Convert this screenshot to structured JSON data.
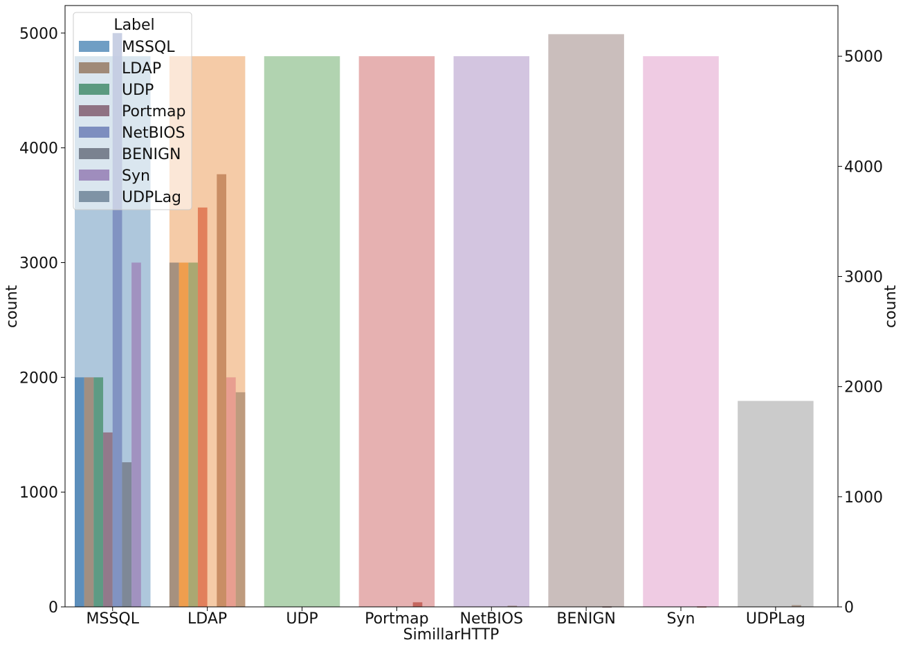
{
  "chart_data": {
    "type": "bar",
    "xlabel": "SimillarHTTP",
    "ylabel_left": "count",
    "ylabel_right": "count",
    "categories": [
      "MSSQL",
      "LDAP",
      "UDP",
      "Portmap",
      "NetBIOS",
      "BENIGN",
      "Syn",
      "UDPLag"
    ],
    "ylim_left": [
      0,
      5240
    ],
    "ylim_right": [
      0,
      5460
    ],
    "yticks_left": [
      0,
      1000,
      2000,
      3000,
      4000,
      5000
    ],
    "yticks_right": [
      0,
      1000,
      2000,
      3000,
      4000,
      5000
    ],
    "background_bars": {
      "axis": "right",
      "values": [
        5000,
        5000,
        5000,
        5000,
        5000,
        5200,
        5000,
        1870
      ],
      "colors": [
        "#aec7dc",
        "#f5cba7",
        "#b1d3b0",
        "#e6b1b1",
        "#d3c5e0",
        "#cabebc",
        "#efcbe3",
        "#cbcbcb"
      ]
    },
    "legend": {
      "title": "Label",
      "placement": "upper left",
      "entries": [
        "MSSQL",
        "LDAP",
        "UDP",
        "Portmap",
        "NetBIOS",
        "BENIGN",
        "Syn",
        "UDPLag"
      ],
      "colors": [
        "#6f9ec4",
        "#a08a78",
        "#5b9a80",
        "#8f7283",
        "#7d8ebf",
        "#7a8290",
        "#9f8dbd",
        "#7f93a5"
      ]
    },
    "hue_bars": {
      "axis": "left",
      "series": [
        {
          "values": [
            2000,
            3000,
            0,
            0,
            0,
            0,
            0,
            0
          ],
          "colors": [
            "#5589b7",
            "#9e8c7c",
            "#5b9a80",
            "#8f7283",
            "#7d8ebf",
            "#7a8290",
            "#9f8dbd",
            "#7f93a5"
          ]
        },
        {
          "values": [
            2000,
            3000,
            0,
            0,
            0,
            0,
            0,
            0
          ],
          "colors": [
            "#a08a78",
            "#ee9a47",
            "#5b9a80",
            "#8f7283",
            "#7d8ebf",
            "#7a8290",
            "#9f8dbd",
            "#7f93a5"
          ]
        },
        {
          "values": [
            2000,
            3000,
            0,
            0,
            0,
            0,
            0,
            0
          ],
          "colors": [
            "#56977c",
            "#a3a56e",
            "#5b9a80",
            "#8f7283",
            "#7d8ebf",
            "#7a8290",
            "#9f8dbd",
            "#7f93a5"
          ]
        },
        {
          "values": [
            1520,
            3480,
            0,
            0,
            0,
            0,
            0,
            0
          ],
          "colors": [
            "#8f7283",
            "#e07a55",
            "#5b9a80",
            "#8f7283",
            "#7d8ebf",
            "#7a8290",
            "#9f8dbd",
            "#7f93a5"
          ]
        },
        {
          "values": [
            5000,
            0,
            0,
            0,
            0,
            0,
            0,
            0
          ],
          "colors": [
            "#7d8ebf",
            "#e07a55",
            "#5b9a80",
            "#8f7283",
            "#7d8ebf",
            "#7a8290",
            "#9f8dbd",
            "#7f93a5"
          ]
        },
        {
          "values": [
            1260,
            3770,
            0,
            0,
            0,
            0,
            0,
            0
          ],
          "colors": [
            "#7a8290",
            "#c4895f",
            "#5b9a80",
            "#8f7283",
            "#7d8ebf",
            "#7a8290",
            "#9f8dbd",
            "#7f93a5"
          ]
        },
        {
          "values": [
            3000,
            2000,
            0,
            0,
            0,
            0,
            0,
            0
          ],
          "colors": [
            "#9f8dbd",
            "#e69a8e",
            "#5b9a80",
            "#8f7283",
            "#7d8ebf",
            "#7a8290",
            "#9f8dbd",
            "#7f93a5"
          ]
        },
        {
          "values": [
            0,
            1870,
            0,
            0,
            0,
            0,
            0,
            0
          ],
          "colors": [
            "#7f93a5",
            "#b8977b",
            "#5b9a80",
            "#8f7283",
            "#7d8ebf",
            "#7a8290",
            "#9f8dbd",
            "#7f93a5"
          ]
        }
      ]
    },
    "small_bars": {
      "axis": "left",
      "values": [
        0,
        0,
        0,
        40,
        10,
        5,
        5,
        15
      ],
      "colors": [
        "#c5675f",
        "#c5675f",
        "#c5675f",
        "#c5675f",
        "#a38f8f",
        "#a38f8f",
        "#c79292",
        "#a8968a"
      ]
    }
  }
}
